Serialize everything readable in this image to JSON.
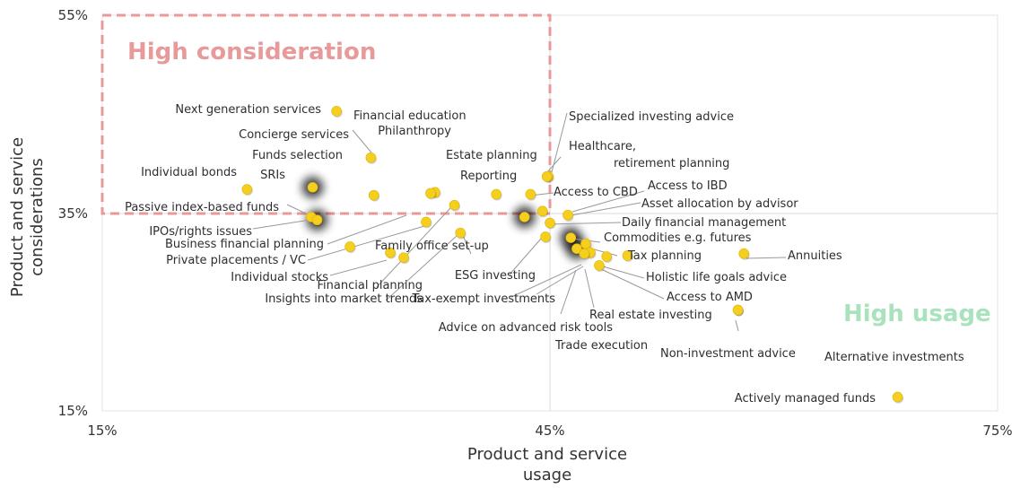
{
  "chart_data": {
    "type": "scatter",
    "xlabel": [
      "Product and service",
      "usage"
    ],
    "ylabel": [
      "Product and service",
      "considerations"
    ],
    "xlim": [
      15,
      75
    ],
    "ylim": [
      15,
      55
    ],
    "x_ticks": [
      "15%",
      "45%",
      "75%"
    ],
    "y_ticks": [
      "55%",
      "35%",
      "15%"
    ],
    "zones": {
      "high_consideration": {
        "label": "High consideration",
        "color": "#e89a9a",
        "x_range": [
          15,
          45
        ],
        "y_range": [
          35,
          55
        ]
      },
      "high_usage": {
        "label": "High usage",
        "color": "#a9e3bd"
      }
    },
    "point_color": "#f5cf1f",
    "points": [
      {
        "name": "Next generation services",
        "x": 30.7,
        "y": 45.3
      },
      {
        "name": "Financial education",
        "x": 37.3,
        "y": 37.1
      },
      {
        "name": "Philanthropy",
        "x": 37.0,
        "y": 37.0
      },
      {
        "name": "Concierge services",
        "x": 33.0,
        "y": 40.6
      },
      {
        "name": "Funds selection",
        "x": 33.2,
        "y": 36.8
      },
      {
        "name": "Estate planning",
        "x": 41.4,
        "y": 36.9
      },
      {
        "name": "Reporting",
        "x": 43.7,
        "y": 36.9
      },
      {
        "name": "Specialized investing advice",
        "x": 44.9,
        "y": 38.7
      },
      {
        "name": "Healthcare, retirement planning",
        "x": 44.8,
        "y": 38.7
      },
      {
        "name": "Individual bonds",
        "x": 24.7,
        "y": 37.4
      },
      {
        "name": "SRIs",
        "x": 29.1,
        "y": 37.6
      },
      {
        "name": "Passive index-based funds",
        "x": 29.0,
        "y": 34.6
      },
      {
        "name": "IPOs/rights issues",
        "x": 29.4,
        "y": 34.3
      },
      {
        "name": "Business financial planning",
        "x": 31.6,
        "y": 31.6
      },
      {
        "name": "Private placements / VC",
        "x": 35.2,
        "y": 30.5
      },
      {
        "name": "Individual stocks",
        "x": 34.3,
        "y": 31.0
      },
      {
        "name": "Family office set-up",
        "x": 36.7,
        "y": 34.1
      },
      {
        "name": "Financial planning",
        "x": 38.6,
        "y": 35.8
      },
      {
        "name": "Insights into market trends",
        "x": 39.0,
        "y": 33.0
      },
      {
        "name": "Access to CBD",
        "x": 43.3,
        "y": 34.6
      },
      {
        "name": "Access to IBD",
        "x": 45.0,
        "y": 34.0
      },
      {
        "name": "Asset allocation by advisor",
        "x": 46.2,
        "y": 34.8
      },
      {
        "name": "Daily financial management",
        "x": 44.5,
        "y": 35.2
      },
      {
        "name": "Commodities e.g. futures",
        "x": 47.4,
        "y": 31.9
      },
      {
        "name": "Tax planning",
        "x": 46.4,
        "y": 32.5
      },
      {
        "name": "ESG investing",
        "x": 44.7,
        "y": 32.6
      },
      {
        "name": "Tax-exempt investments",
        "x": 47.7,
        "y": 31.0
      },
      {
        "name": "Advice on advanced risk tools",
        "x": 46.8,
        "y": 31.4
      },
      {
        "name": "Trade execution",
        "x": 48.3,
        "y": 29.7
      },
      {
        "name": "Real estate investing",
        "x": 48.8,
        "y": 30.6
      },
      {
        "name": "Holistic life goals advice",
        "x": 50.2,
        "y": 30.7
      },
      {
        "name": "Access to AMD",
        "x": 47.3,
        "y": 30.9
      },
      {
        "name": "Annuities",
        "x": 58.0,
        "y": 30.9
      },
      {
        "name": "Non-investment advice",
        "x": 57.6,
        "y": 25.2
      },
      {
        "name": "Alternative investments",
        "x": 57.6,
        "y": 25.2
      },
      {
        "name": "Actively managed funds",
        "x": 68.3,
        "y": 16.4
      }
    ]
  }
}
